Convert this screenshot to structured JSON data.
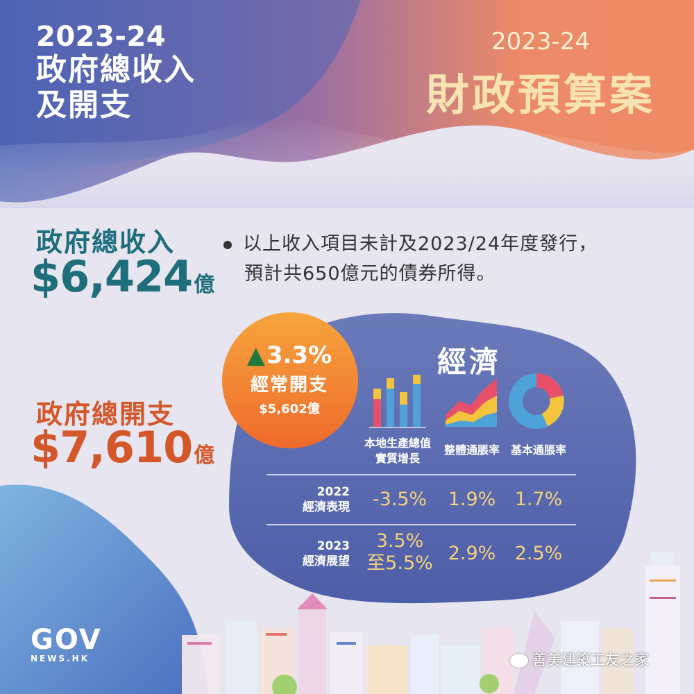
{
  "header": {
    "left_year": "2023-24",
    "left_line1": "政府總收入",
    "left_line2": "及開支",
    "right_year": "2023-24",
    "right_title": "財政預算案"
  },
  "revenue": {
    "label": "政府總收入",
    "amount": "$6,424",
    "unit": "億"
  },
  "note": {
    "line1": "以上收入項目未計及2023/24年度發行，",
    "line2": "預計共650億元的債券所得。"
  },
  "expenditure": {
    "label": "政府總開支",
    "amount": "$7,610",
    "unit": "億"
  },
  "recurrent": {
    "percent": "3.3%",
    "label": "經常開支",
    "amount": "$5,602億"
  },
  "economy": {
    "title": "經濟",
    "indicators": [
      {
        "label_line1": "本地生產總值",
        "label_line2": "實質增長",
        "icon": "bar-chart-icon"
      },
      {
        "label_line1": "整體通脹率",
        "label_line2": "",
        "icon": "area-chart-icon"
      },
      {
        "label_line1": "基本通脹率",
        "label_line2": "",
        "icon": "donut-chart-icon"
      }
    ],
    "rows": [
      {
        "year": "2022",
        "label": "經濟表現",
        "values": [
          "-3.5%",
          "1.9%",
          "1.7%"
        ]
      },
      {
        "year": "2023",
        "label": "經濟展望",
        "values": [
          "3.5%",
          "2.9%",
          "2.5%"
        ],
        "values_sub": [
          "至5.5%"
        ]
      }
    ]
  },
  "colors": {
    "revenue": "#1f6e7c",
    "expenditure": "#d4572a",
    "value_text": "#f7d27a",
    "panel": "#5e6fb0"
  },
  "logo": {
    "line1": "GOV",
    "line2": "NEWS.HK"
  },
  "watermark": {
    "text": "善美建築工友之家"
  }
}
